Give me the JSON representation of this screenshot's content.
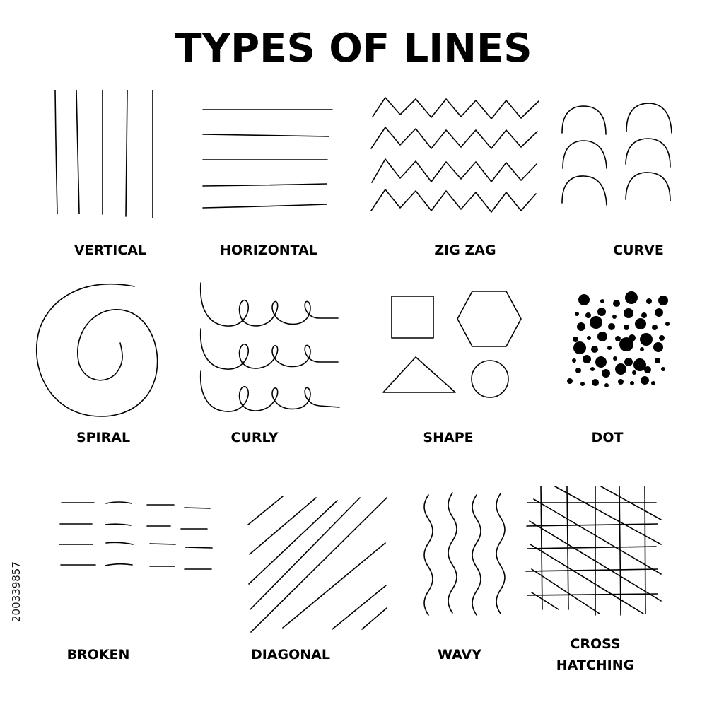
{
  "title": "TYPES OF LINES",
  "labels": {
    "vertical": "VERTICAL",
    "horizontal": "HORIZONTAL",
    "zigzag": "ZIG ZAG",
    "curve": "CURVE",
    "spiral": "SPIRAL",
    "curly": "CURLY",
    "shape": "SHAPE",
    "dot": "DOT",
    "broken": "BROKEN",
    "diagonal": "DIAGONAL",
    "wavy": "WAVY",
    "cross_hatching_1": "CROSS",
    "cross_hatching_2": "HATCHING"
  },
  "stock_id": "200339857",
  "colors": {
    "ink": "#000000",
    "background": "#ffffff"
  }
}
